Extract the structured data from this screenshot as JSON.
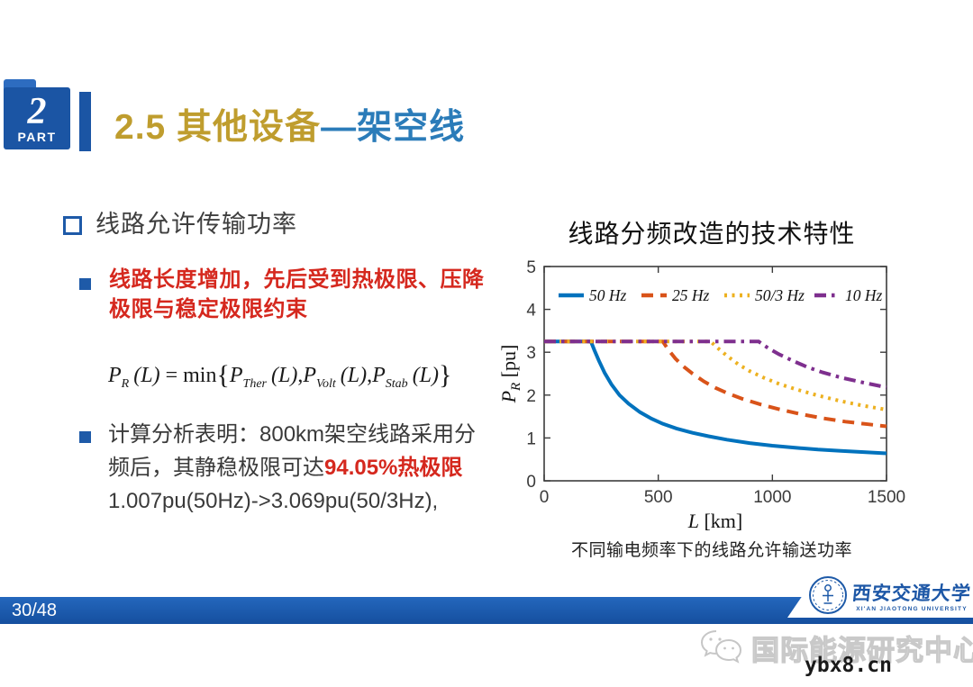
{
  "slide": {
    "badge": {
      "number": "2",
      "label": "PART"
    },
    "title": {
      "section": "2.5 其他设备",
      "dash_suffix": "—架空线"
    },
    "left": {
      "heading": "线路允许传输功率",
      "red_line1": "线路长度增加，先后受到热极限、压降",
      "red_line2": "极限与稳定极限约束",
      "formula": {
        "lhs_base": "P",
        "lhs_sub": "R",
        "lhs_arg": "(L)",
        "rel": "= min",
        "open": "{",
        "t1_base": "P",
        "t1_sub": "Ther",
        "t1_arg": "(L)",
        "sep1": ",",
        "t2_base": "P",
        "t2_sub": "Volt",
        "t2_arg": "(L)",
        "sep2": ",",
        "t3_base": "P",
        "t3_sub": "Stab",
        "t3_arg": "(L)",
        "close": "}"
      },
      "analysis_line1": "计算分析表明：800km架空线路采用分",
      "analysis_line2_prefix": "频后，其静稳极限可达",
      "analysis_line2_red": "94.05%热极限",
      "analysis_line3": "1.007pu(50Hz)->3.069pu(50/3Hz),"
    }
  },
  "chart": {
    "title": "线路分频改造的技术特性",
    "caption": "不同输电频率下的线路允许输送功率"
  },
  "chart_data": {
    "type": "line",
    "title": "线路分频改造的技术特性",
    "xlabel": "L [km]",
    "ylabel": "P_R [pu]",
    "xlabel_base": "L",
    "xlabel_unit": "[km]",
    "ylabel_base": "P",
    "ylabel_sub": "R",
    "ylabel_unit": "[pu]",
    "xlim": [
      0,
      1500
    ],
    "ylim": [
      0,
      5
    ],
    "xticks": [
      0,
      500,
      1000,
      1500
    ],
    "yticks": [
      0,
      1,
      2,
      3,
      4,
      5
    ],
    "grid": false,
    "legend_position": "top-inside-horizontal",
    "series": [
      {
        "name": "50 Hz",
        "color": "#0072BD",
        "style": "solid",
        "points": [
          [
            0,
            3.25
          ],
          [
            205,
            3.25
          ],
          [
            220,
            3.05
          ],
          [
            240,
            2.8
          ],
          [
            265,
            2.52
          ],
          [
            295,
            2.25
          ],
          [
            330,
            2.0
          ],
          [
            370,
            1.8
          ],
          [
            420,
            1.6
          ],
          [
            470,
            1.45
          ],
          [
            520,
            1.33
          ],
          [
            580,
            1.22
          ],
          [
            650,
            1.12
          ],
          [
            720,
            1.04
          ],
          [
            800,
            0.96
          ],
          [
            900,
            0.88
          ],
          [
            1000,
            0.82
          ],
          [
            1100,
            0.77
          ],
          [
            1200,
            0.73
          ],
          [
            1300,
            0.7
          ],
          [
            1400,
            0.67
          ],
          [
            1500,
            0.64
          ]
        ]
      },
      {
        "name": "25 Hz",
        "color": "#D95319",
        "style": "dashed",
        "points": [
          [
            0,
            3.25
          ],
          [
            520,
            3.25
          ],
          [
            545,
            3.05
          ],
          [
            575,
            2.85
          ],
          [
            610,
            2.67
          ],
          [
            650,
            2.5
          ],
          [
            700,
            2.32
          ],
          [
            750,
            2.17
          ],
          [
            800,
            2.05
          ],
          [
            870,
            1.91
          ],
          [
            950,
            1.78
          ],
          [
            1030,
            1.67
          ],
          [
            1120,
            1.56
          ],
          [
            1220,
            1.46
          ],
          [
            1320,
            1.38
          ],
          [
            1420,
            1.32
          ],
          [
            1500,
            1.27
          ]
        ]
      },
      {
        "name": "50/3 Hz",
        "color": "#EDB120",
        "style": "dotted",
        "points": [
          [
            0,
            3.25
          ],
          [
            730,
            3.25
          ],
          [
            760,
            3.1
          ],
          [
            800,
            2.92
          ],
          [
            850,
            2.72
          ],
          [
            900,
            2.56
          ],
          [
            960,
            2.41
          ],
          [
            1030,
            2.26
          ],
          [
            1100,
            2.14
          ],
          [
            1200,
            1.99
          ],
          [
            1300,
            1.86
          ],
          [
            1400,
            1.75
          ],
          [
            1500,
            1.66
          ]
        ]
      },
      {
        "name": "10 Hz",
        "color": "#7E2F8E",
        "style": "dashdot",
        "points": [
          [
            0,
            3.25
          ],
          [
            940,
            3.25
          ],
          [
            980,
            3.1
          ],
          [
            1030,
            2.95
          ],
          [
            1090,
            2.8
          ],
          [
            1150,
            2.66
          ],
          [
            1220,
            2.53
          ],
          [
            1300,
            2.41
          ],
          [
            1400,
            2.29
          ],
          [
            1500,
            2.18
          ]
        ]
      }
    ]
  },
  "footer": {
    "page": "30/48",
    "university_cn": "西安交通大学",
    "university_en": "XI'AN JIAOTONG UNIVERSITY"
  },
  "watermark": {
    "label": "国际能源研究中心",
    "site": "ybx8.cn"
  },
  "colors": {
    "gold": "#bf9d2e",
    "title_blue": "#2b7cb9",
    "accent_blue": "#1b55a4",
    "red": "#d5281e",
    "bar_blue": "#1a5ab4"
  }
}
